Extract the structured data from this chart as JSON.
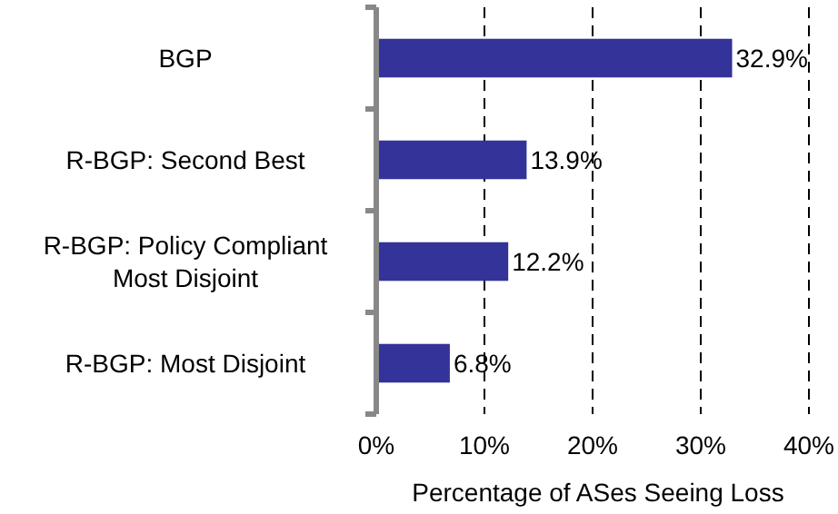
{
  "chart_data": {
    "type": "bar",
    "orientation": "horizontal",
    "xlabel": "Percentage of ASes Seeing Loss",
    "categories": [
      "BGP",
      "R-BGP: Second Best",
      "R-BGP: Policy Compliant Most Disjoint",
      "R-BGP: Most Disjoint"
    ],
    "values": [
      32.9,
      13.9,
      12.2,
      6.8
    ],
    "color": "#333399",
    "value_labels": [
      "32.9%",
      "13.9%",
      "12.2%",
      "6.8%"
    ],
    "xlim": [
      0,
      40
    ],
    "xticks": [
      {
        "value": 0,
        "label": "0%"
      },
      {
        "value": 10,
        "label": "10%"
      },
      {
        "value": 20,
        "label": "20%"
      },
      {
        "value": 30,
        "label": "30%"
      },
      {
        "value": 40,
        "label": "40%"
      }
    ],
    "grid": "x"
  }
}
